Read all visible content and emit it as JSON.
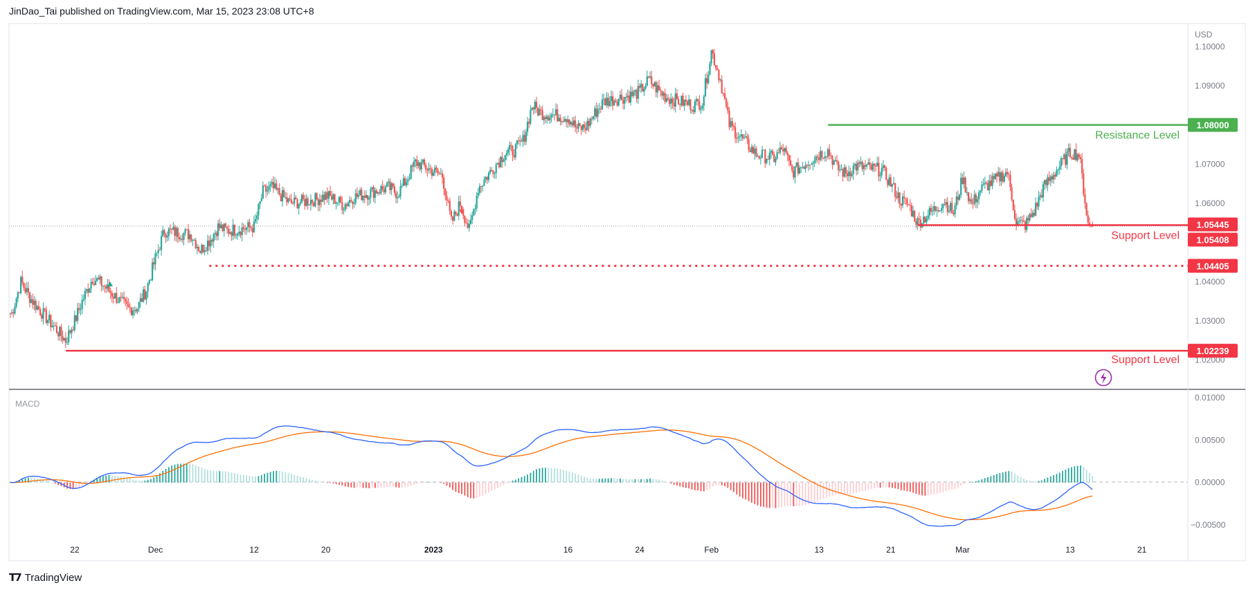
{
  "header": {
    "text": "JinDao_Tai published on TradingView.com, Mar 15, 2023 23:08 UTC+8"
  },
  "footer": {
    "brand": "TradingView",
    "logo_icon": "tradingview-logo-icon"
  },
  "colors": {
    "up": "#26a69a",
    "down": "#ef5350",
    "resistance": "#4caf50",
    "support": "#f23645",
    "macd_line": "#2962ff",
    "signal_line": "#ff6d00",
    "hist_up_strong": "#26a69a",
    "hist_up_weak": "#b2dfdb",
    "hist_down_strong": "#ef5350",
    "hist_down_weak": "#ffcdd2",
    "alert": "#9c27b0"
  },
  "chart_data": [
    {
      "type": "candlestick",
      "title": "",
      "currency_label": "USD",
      "x_tick_labels": [
        "22",
        "Dec",
        "12",
        "20",
        "2023",
        "16",
        "24",
        "Feb",
        "13",
        "21",
        "Mar",
        "13",
        "21"
      ],
      "y_tick_labels": [
        "1.10000",
        "1.09000",
        "1.07000",
        "1.06000",
        "1.04000",
        "1.03000",
        "1.02000"
      ],
      "ylim": [
        1.015,
        1.104
      ],
      "grid": false,
      "price_series": {
        "name": "",
        "anchor_points": [
          [
            "2022-11-15",
            1.032
          ],
          [
            "2022-11-16",
            1.04
          ],
          [
            "2022-11-17",
            1.036
          ],
          [
            "2022-11-18",
            1.033
          ],
          [
            "2022-11-21",
            1.025
          ],
          [
            "2022-11-22",
            1.03
          ],
          [
            "2022-11-23",
            1.036
          ],
          [
            "2022-11-24",
            1.041
          ],
          [
            "2022-11-25",
            1.0395
          ],
          [
            "2022-11-28",
            1.033
          ],
          [
            "2022-11-29",
            1.0335
          ],
          [
            "2022-11-30",
            1.038
          ],
          [
            "2022-12-01",
            1.046
          ],
          [
            "2022-12-02",
            1.053
          ],
          [
            "2022-12-05",
            1.052
          ],
          [
            "2022-12-06",
            1.048
          ],
          [
            "2022-12-07",
            1.0505
          ],
          [
            "2022-12-08",
            1.054
          ],
          [
            "2022-12-09",
            1.053
          ],
          [
            "2022-12-12",
            1.054
          ],
          [
            "2022-12-13",
            1.063
          ],
          [
            "2022-12-14",
            1.064
          ],
          [
            "2022-12-15",
            1.062
          ],
          [
            "2022-12-16",
            1.06
          ],
          [
            "2022-12-19",
            1.061
          ],
          [
            "2022-12-20",
            1.062
          ],
          [
            "2022-12-21",
            1.061
          ],
          [
            "2022-12-22",
            1.0595
          ],
          [
            "2022-12-23",
            1.0615
          ],
          [
            "2022-12-26",
            1.0635
          ],
          [
            "2022-12-27",
            1.064
          ],
          [
            "2022-12-28",
            1.0625
          ],
          [
            "2022-12-29",
            1.066
          ],
          [
            "2022-12-30",
            1.0705
          ],
          [
            "2023-01-02",
            1.067
          ],
          [
            "2023-01-03",
            1.055
          ],
          [
            "2023-01-04",
            1.06
          ],
          [
            "2023-01-05",
            1.053
          ],
          [
            "2023-01-06",
            1.064
          ],
          [
            "2023-01-09",
            1.073
          ],
          [
            "2023-01-10",
            1.0735
          ],
          [
            "2023-01-11",
            1.076
          ],
          [
            "2023-01-12",
            1.085
          ],
          [
            "2023-01-13",
            1.083
          ],
          [
            "2023-01-16",
            1.082
          ],
          [
            "2023-01-17",
            1.079
          ],
          [
            "2023-01-18",
            1.0795
          ],
          [
            "2023-01-19",
            1.083
          ],
          [
            "2023-01-20",
            1.086
          ],
          [
            "2023-01-23",
            1.0875
          ],
          [
            "2023-01-24",
            1.0885
          ],
          [
            "2023-01-25",
            1.0915
          ],
          [
            "2023-01-26",
            1.089
          ],
          [
            "2023-01-27",
            1.087
          ],
          [
            "2023-01-30",
            1.085
          ],
          [
            "2023-01-31",
            1.086
          ],
          [
            "2023-02-01",
            1.099
          ],
          [
            "2023-02-02",
            1.0915
          ],
          [
            "2023-02-03",
            1.08
          ],
          [
            "2023-02-06",
            1.0725
          ],
          [
            "2023-02-07",
            1.072
          ],
          [
            "2023-02-08",
            1.0715
          ],
          [
            "2023-02-09",
            1.074
          ],
          [
            "2023-02-10",
            1.068
          ],
          [
            "2023-02-13",
            1.0725
          ],
          [
            "2023-02-14",
            1.0735
          ],
          [
            "2023-02-15",
            1.069
          ],
          [
            "2023-02-16",
            1.0675
          ],
          [
            "2023-02-17",
            1.0695
          ],
          [
            "2023-02-20",
            1.0685
          ],
          [
            "2023-02-21",
            1.065
          ],
          [
            "2023-02-22",
            1.061
          ],
          [
            "2023-02-23",
            1.0595
          ],
          [
            "2023-02-24",
            1.055
          ],
          [
            "2023-02-27",
            1.0605
          ],
          [
            "2023-02-28",
            1.0575
          ],
          [
            "2023-03-01",
            1.0665
          ],
          [
            "2023-03-02",
            1.0595
          ],
          [
            "2023-03-03",
            1.0635
          ],
          [
            "2023-03-06",
            1.068
          ],
          [
            "2023-03-07",
            1.055
          ],
          [
            "2023-03-08",
            1.0545
          ],
          [
            "2023-03-09",
            1.058
          ],
          [
            "2023-03-10",
            1.064
          ],
          [
            "2023-03-13",
            1.073
          ],
          [
            "2023-03-14",
            1.0725
          ],
          [
            "2023-03-15",
            1.0545
          ]
        ]
      },
      "levels": [
        {
          "label": "Resistance Level",
          "value": 1.08,
          "badge": "1.08000",
          "style": "solid",
          "color_key": "resistance",
          "from_date": "2023-02-14"
        },
        {
          "label": "Support Level",
          "value": 1.05445,
          "badge": "1.05445",
          "style": "solid",
          "color_key": "support",
          "from_date": "2023-02-24"
        },
        {
          "label": "",
          "value": 1.04405,
          "badge": "1.04405",
          "style": "dotted",
          "color_key": "support",
          "from_date": "2022-12-07"
        },
        {
          "label": "Support Level",
          "value": 1.02239,
          "badge": "1.02239",
          "style": "solid",
          "color_key": "support",
          "from_date": "2022-11-21"
        }
      ],
      "current_price_badge": {
        "value": 1.05408,
        "text": "1.05408"
      }
    },
    {
      "type": "line",
      "title": "MACD",
      "y_tick_labels": [
        "0.01000",
        "0.00500",
        "0.00000",
        "−0.00500"
      ],
      "ylim": [
        -0.0058,
        0.0103
      ],
      "series": [
        {
          "name": "",
          "color_key": "macd_line"
        },
        {
          "name": "",
          "color_key": "signal_line"
        },
        {
          "name": "",
          "color_key": "histogram"
        }
      ]
    }
  ]
}
